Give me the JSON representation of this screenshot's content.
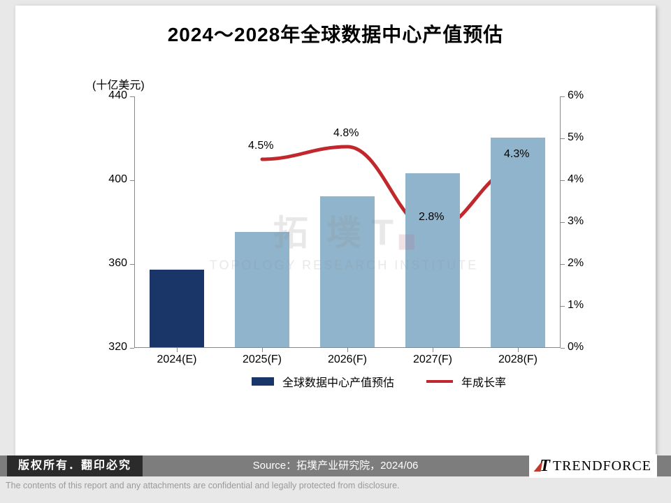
{
  "title": "2024～2028年全球数据中心产值预估",
  "chart": {
    "type": "bar+line",
    "unit_label": "(十亿美元)",
    "categories": [
      "2024(E)",
      "2025(F)",
      "2026(F)",
      "2027(F)",
      "2028(F)"
    ],
    "bars": {
      "values": [
        357,
        375,
        392,
        403,
        420
      ],
      "colors": [
        "#1a3668",
        "#8fb4cc",
        "#8fb4cc",
        "#8fb4cc",
        "#8fb4cc"
      ],
      "bar_width_ratio": 0.64
    },
    "line": {
      "values": [
        null,
        4.5,
        4.8,
        2.8,
        4.3
      ],
      "labels": [
        "",
        "4.5%",
        "4.8%",
        "2.8%",
        "4.3%"
      ],
      "color": "#c1282d",
      "stroke_width": 5
    },
    "y_left": {
      "min": 320,
      "max": 440,
      "ticks": [
        320,
        360,
        400,
        440
      ],
      "fontsize": 16
    },
    "y_right": {
      "min": 0,
      "max": 6,
      "ticks": [
        0,
        1,
        2,
        3,
        4,
        5,
        6
      ],
      "suffix": "%",
      "fontsize": 16
    },
    "background_color": "#ffffff",
    "axis_color": "#888888",
    "label_fontsize": 16,
    "title_fontsize": 28
  },
  "legend": {
    "items": [
      {
        "swatch_color": "#1a3668",
        "type": "bar",
        "label": "全球数据中心产值预估"
      },
      {
        "swatch_color": "#c1282d",
        "type": "line",
        "label": "年成长率"
      }
    ]
  },
  "watermark": {
    "main": "拓 墣",
    "t": "T",
    "sub": "TOPOLOGY RESEARCH INSTITUTE"
  },
  "footer": {
    "copyright": "版权所有．翻印必究",
    "source": "Source：拓墣产业研究院，2024/06",
    "logo_text": "TRENDFORCE",
    "disclaimer": "The contents of this report and any attachments are confidential and legally protected from disclosure."
  },
  "page_background": "#e8e8e8",
  "slide_background": "#ffffff"
}
